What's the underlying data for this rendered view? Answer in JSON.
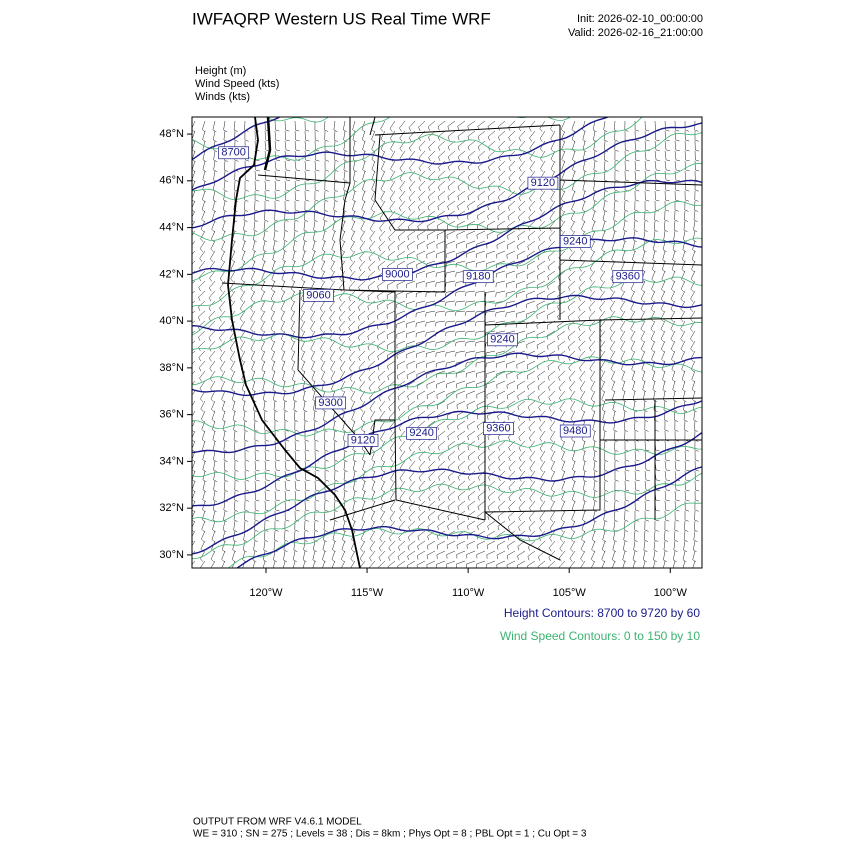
{
  "header": {
    "title": "IWFAQRP Western US Real Time WRF",
    "init": "Init: 2026-02-10_00:00:00",
    "valid": "Valid: 2026-02-16_21:00:00"
  },
  "fields": [
    "Height   (m)",
    "Wind Speed   (kts)",
    "Winds   (kts)"
  ],
  "map": {
    "xlim": [
      -123.66,
      -98.43
    ],
    "ylim": [
      29.44,
      48.73
    ],
    "xticks": [
      {
        "value": -120,
        "label": "120°W"
      },
      {
        "value": -115,
        "label": "115°W"
      },
      {
        "value": -110,
        "label": "110°W"
      },
      {
        "value": -105,
        "label": "105°W"
      },
      {
        "value": -100,
        "label": "100°W"
      }
    ],
    "yticks": [
      {
        "value": 30,
        "label": "30°N"
      },
      {
        "value": 32,
        "label": "32°N"
      },
      {
        "value": 34,
        "label": "34°N"
      },
      {
        "value": 36,
        "label": "36°N"
      },
      {
        "value": 38,
        "label": "38°N"
      },
      {
        "value": 40,
        "label": "40°N"
      },
      {
        "value": 42,
        "label": "42°N"
      },
      {
        "value": 44,
        "label": "44°N"
      },
      {
        "value": 46,
        "label": "46°N"
      },
      {
        "value": 48,
        "label": "48°N"
      }
    ],
    "height_color": "#1a1a8c",
    "wind_color": "#3cb371",
    "contour_labels": [
      {
        "value": 8700,
        "lon": -121.6,
        "lat": 47.2
      },
      {
        "value": 9120,
        "lon": -106.3,
        "lat": 45.9
      },
      {
        "value": 9240,
        "lon": -104.7,
        "lat": 43.4
      },
      {
        "value": 9360,
        "lon": -102.1,
        "lat": 41.9
      },
      {
        "value": 9000,
        "lon": -113.5,
        "lat": 42.0
      },
      {
        "value": 9060,
        "lon": -117.4,
        "lat": 41.1
      },
      {
        "value": 9180,
        "lon": -109.5,
        "lat": 41.9
      },
      {
        "value": 9240,
        "lon": -108.3,
        "lat": 39.2
      },
      {
        "value": 9300,
        "lon": -116.8,
        "lat": 36.5
      },
      {
        "value": 9120,
        "lon": -115.2,
        "lat": 34.9
      },
      {
        "value": 9240,
        "lon": -112.3,
        "lat": 35.2
      },
      {
        "value": 9360,
        "lon": -108.5,
        "lat": 35.4
      },
      {
        "value": 9480,
        "lon": -104.7,
        "lat": 35.3
      }
    ]
  },
  "legend": {
    "height": "Height Contours: 8700 to 9720 by 60",
    "wind": "Wind Speed Contours: 0 to 150 by 10"
  },
  "footer": {
    "line1": "OUTPUT FROM WRF V4.6.1 MODEL",
    "line2": "WE = 310 ; SN = 275 ; Levels = 38 ; Dis = 8km ; Phys Opt = 8 ; PBL Opt = 1 ; Cu Opt = 3"
  }
}
